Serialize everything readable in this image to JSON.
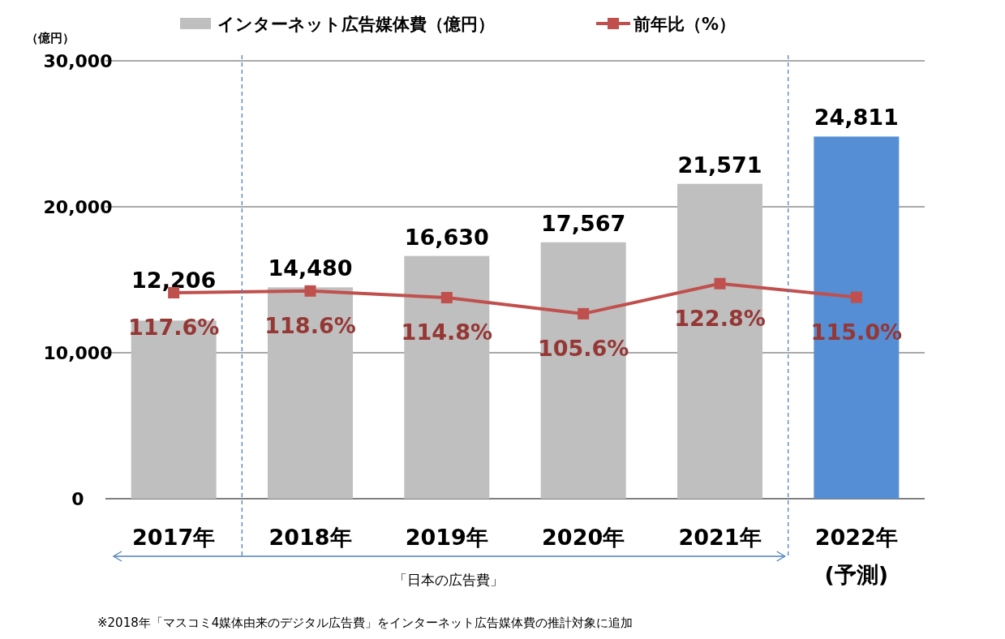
{
  "chart_data": {
    "type": "bar",
    "categories": [
      "2017年",
      "2018年",
      "2019年",
      "2020年",
      "2021年",
      "2022年\n(予測)"
    ],
    "ylabel": "（億円）",
    "ylim": [
      0,
      30000
    ],
    "yticks": [
      0,
      {
        "value": 10000,
        "label": "10,000"
      },
      {
        "value": 20000,
        "label": "20,000"
      },
      {
        "value": 30000,
        "label": "30,000"
      }
    ],
    "y2lim": [
      0,
      250
    ],
    "grid": "y",
    "legend": "top",
    "series": [
      {
        "name": "インターネット広告媒体費（億円）",
        "color": "#bfbfbf",
        "colors": [
          "#bfbfbf",
          "#bfbfbf",
          "#bfbfbf",
          "#bfbfbf",
          "#bfbfbf",
          "#558ed5"
        ],
        "values": [
          12206,
          14480,
          16630,
          17567,
          21571,
          24811
        ],
        "value_labels": [
          "12,206",
          "14,480",
          "16,630",
          "17,567",
          "21,571",
          "24,811"
        ]
      },
      {
        "name": "前年比（%）",
        "type": "line",
        "axis": "y2",
        "color": "#c0504d",
        "marker": "square",
        "line_style": "solid",
        "values": [
          117.6,
          118.6,
          114.8,
          105.6,
          122.8,
          115.0
        ],
        "value_labels": [
          "117.6%",
          "118.6%",
          "114.8%",
          "105.6%",
          "122.8%",
          "115.0%"
        ]
      }
    ],
    "annotations": [
      "「日本の広告費」",
      "※2018年「マスコミ4媒体由来のデジタル広告費」をインターネット広告媒体費の推計対象に追加"
    ]
  }
}
